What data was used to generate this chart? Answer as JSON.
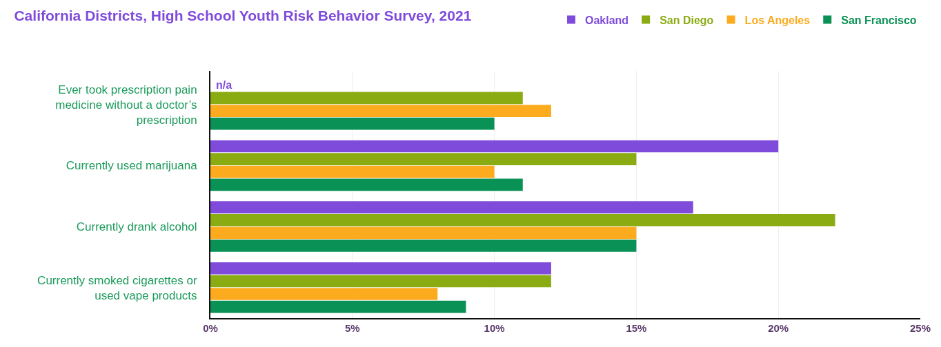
{
  "chart_data": {
    "type": "bar",
    "orientation": "horizontal",
    "title": "California Districts, High School Youth Risk Behavior Survey, 2021",
    "categories": [
      "Ever took prescription pain medicine without a doctor’s prescription",
      "Currently used marijuana",
      "Currently drank alcohol",
      "Currently smoked cigarettes or used vape products"
    ],
    "series": [
      {
        "name": "Oakland",
        "color": "#7f4bdb",
        "values": [
          null,
          20,
          17,
          12
        ]
      },
      {
        "name": "San Diego",
        "color": "#8aab12",
        "values": [
          11,
          15,
          22,
          12
        ]
      },
      {
        "name": "Los Angeles",
        "color": "#fbab1d",
        "values": [
          12,
          10,
          15,
          8
        ]
      },
      {
        "name": "San Francisco",
        "color": "#0a9155",
        "values": [
          10,
          11,
          15,
          9
        ]
      }
    ],
    "annotations": [
      {
        "text": "n/a",
        "x": 0,
        "y": "Ever took prescription pain medicine without a doctor’s prescription"
      }
    ],
    "xlim": [
      0,
      25
    ],
    "xticks": [
      {
        "value": 0,
        "label": "0%"
      },
      {
        "value": 5,
        "label": "5%"
      },
      {
        "value": 10,
        "label": "10%"
      },
      {
        "value": 15,
        "label": "15%"
      },
      {
        "value": 20,
        "label": "20%"
      },
      {
        "value": 25,
        "label": "25%"
      }
    ],
    "grid": "x",
    "legend": "top right"
  }
}
